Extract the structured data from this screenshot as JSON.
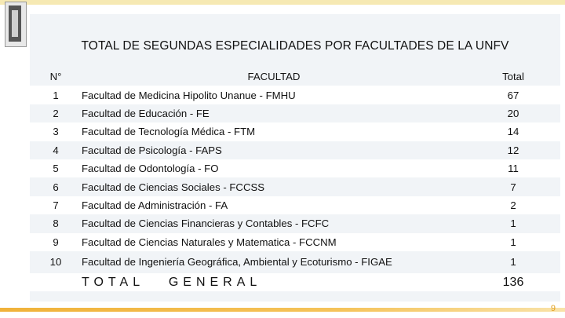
{
  "title": "TOTAL DE SEGUNDAS ESPECIALIDADES POR FACULTADES DE LA UNFV",
  "table": {
    "headers": {
      "no": "N°",
      "facultad": "FACULTAD",
      "total": "Total"
    },
    "rows": [
      {
        "no": "1",
        "facultad": "Facultad de Medicina Hipolito Unanue - FMHU",
        "total": "67"
      },
      {
        "no": "2",
        "facultad": "Facultad de Educación - FE",
        "total": "20"
      },
      {
        "no": "3",
        "facultad": "Facultad de Tecnología Médica - FTM",
        "total": "14"
      },
      {
        "no": "4",
        "facultad": "Facultad de Psicología - FAPS",
        "total": "12"
      },
      {
        "no": "5",
        "facultad": "Facultad de Odontología - FO",
        "total": "11"
      },
      {
        "no": "6",
        "facultad": "Facultad de Ciencias Sociales - FCCSS",
        "total": "7"
      },
      {
        "no": "7",
        "facultad": "Facultad de Administración - FA",
        "total": "2"
      },
      {
        "no": "8",
        "facultad": "Facultad de Ciencias Financieras y Contables - FCFC",
        "total": "1"
      },
      {
        "no": "9",
        "facultad": "Facultad de Ciencias Naturales y Matematica - FCCNM",
        "total": "1"
      },
      {
        "no": "10",
        "facultad": "Facultad de Ingeniería Geográfica, Ambiental y Ecoturismo  - FIGAE",
        "total": "1"
      }
    ],
    "total_label": "TOTAL   GENERAL",
    "total_value": "136"
  },
  "page_number": "9",
  "colors": {
    "panel": "#f1f4f7",
    "accent": "#f0b23a"
  }
}
